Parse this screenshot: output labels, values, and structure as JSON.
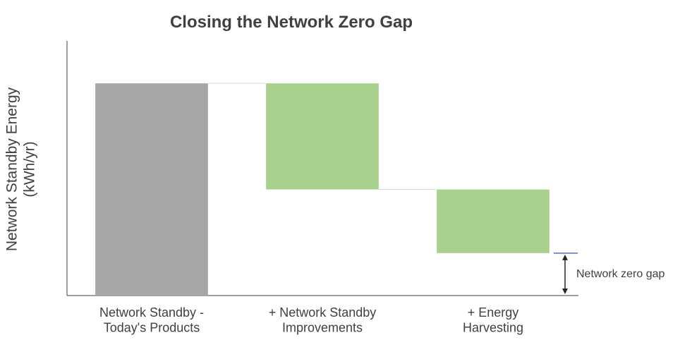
{
  "chart_data": {
    "type": "waterfall",
    "title": "Closing the Network Zero Gap",
    "y_label": "Network Standby Energy\n(kWh/yr)",
    "categories": [
      "Network Standby -\nToday's Products",
      "+ Network Standby\nImprovements",
      "+ Energy\nHarvesting"
    ],
    "values": [
      100,
      -50,
      -30
    ],
    "colors": [
      "#a6a6a6",
      "#a9d18e",
      "#a9d18e"
    ],
    "ylim": [
      0,
      120
    ],
    "annotation": "Network zero gap"
  }
}
